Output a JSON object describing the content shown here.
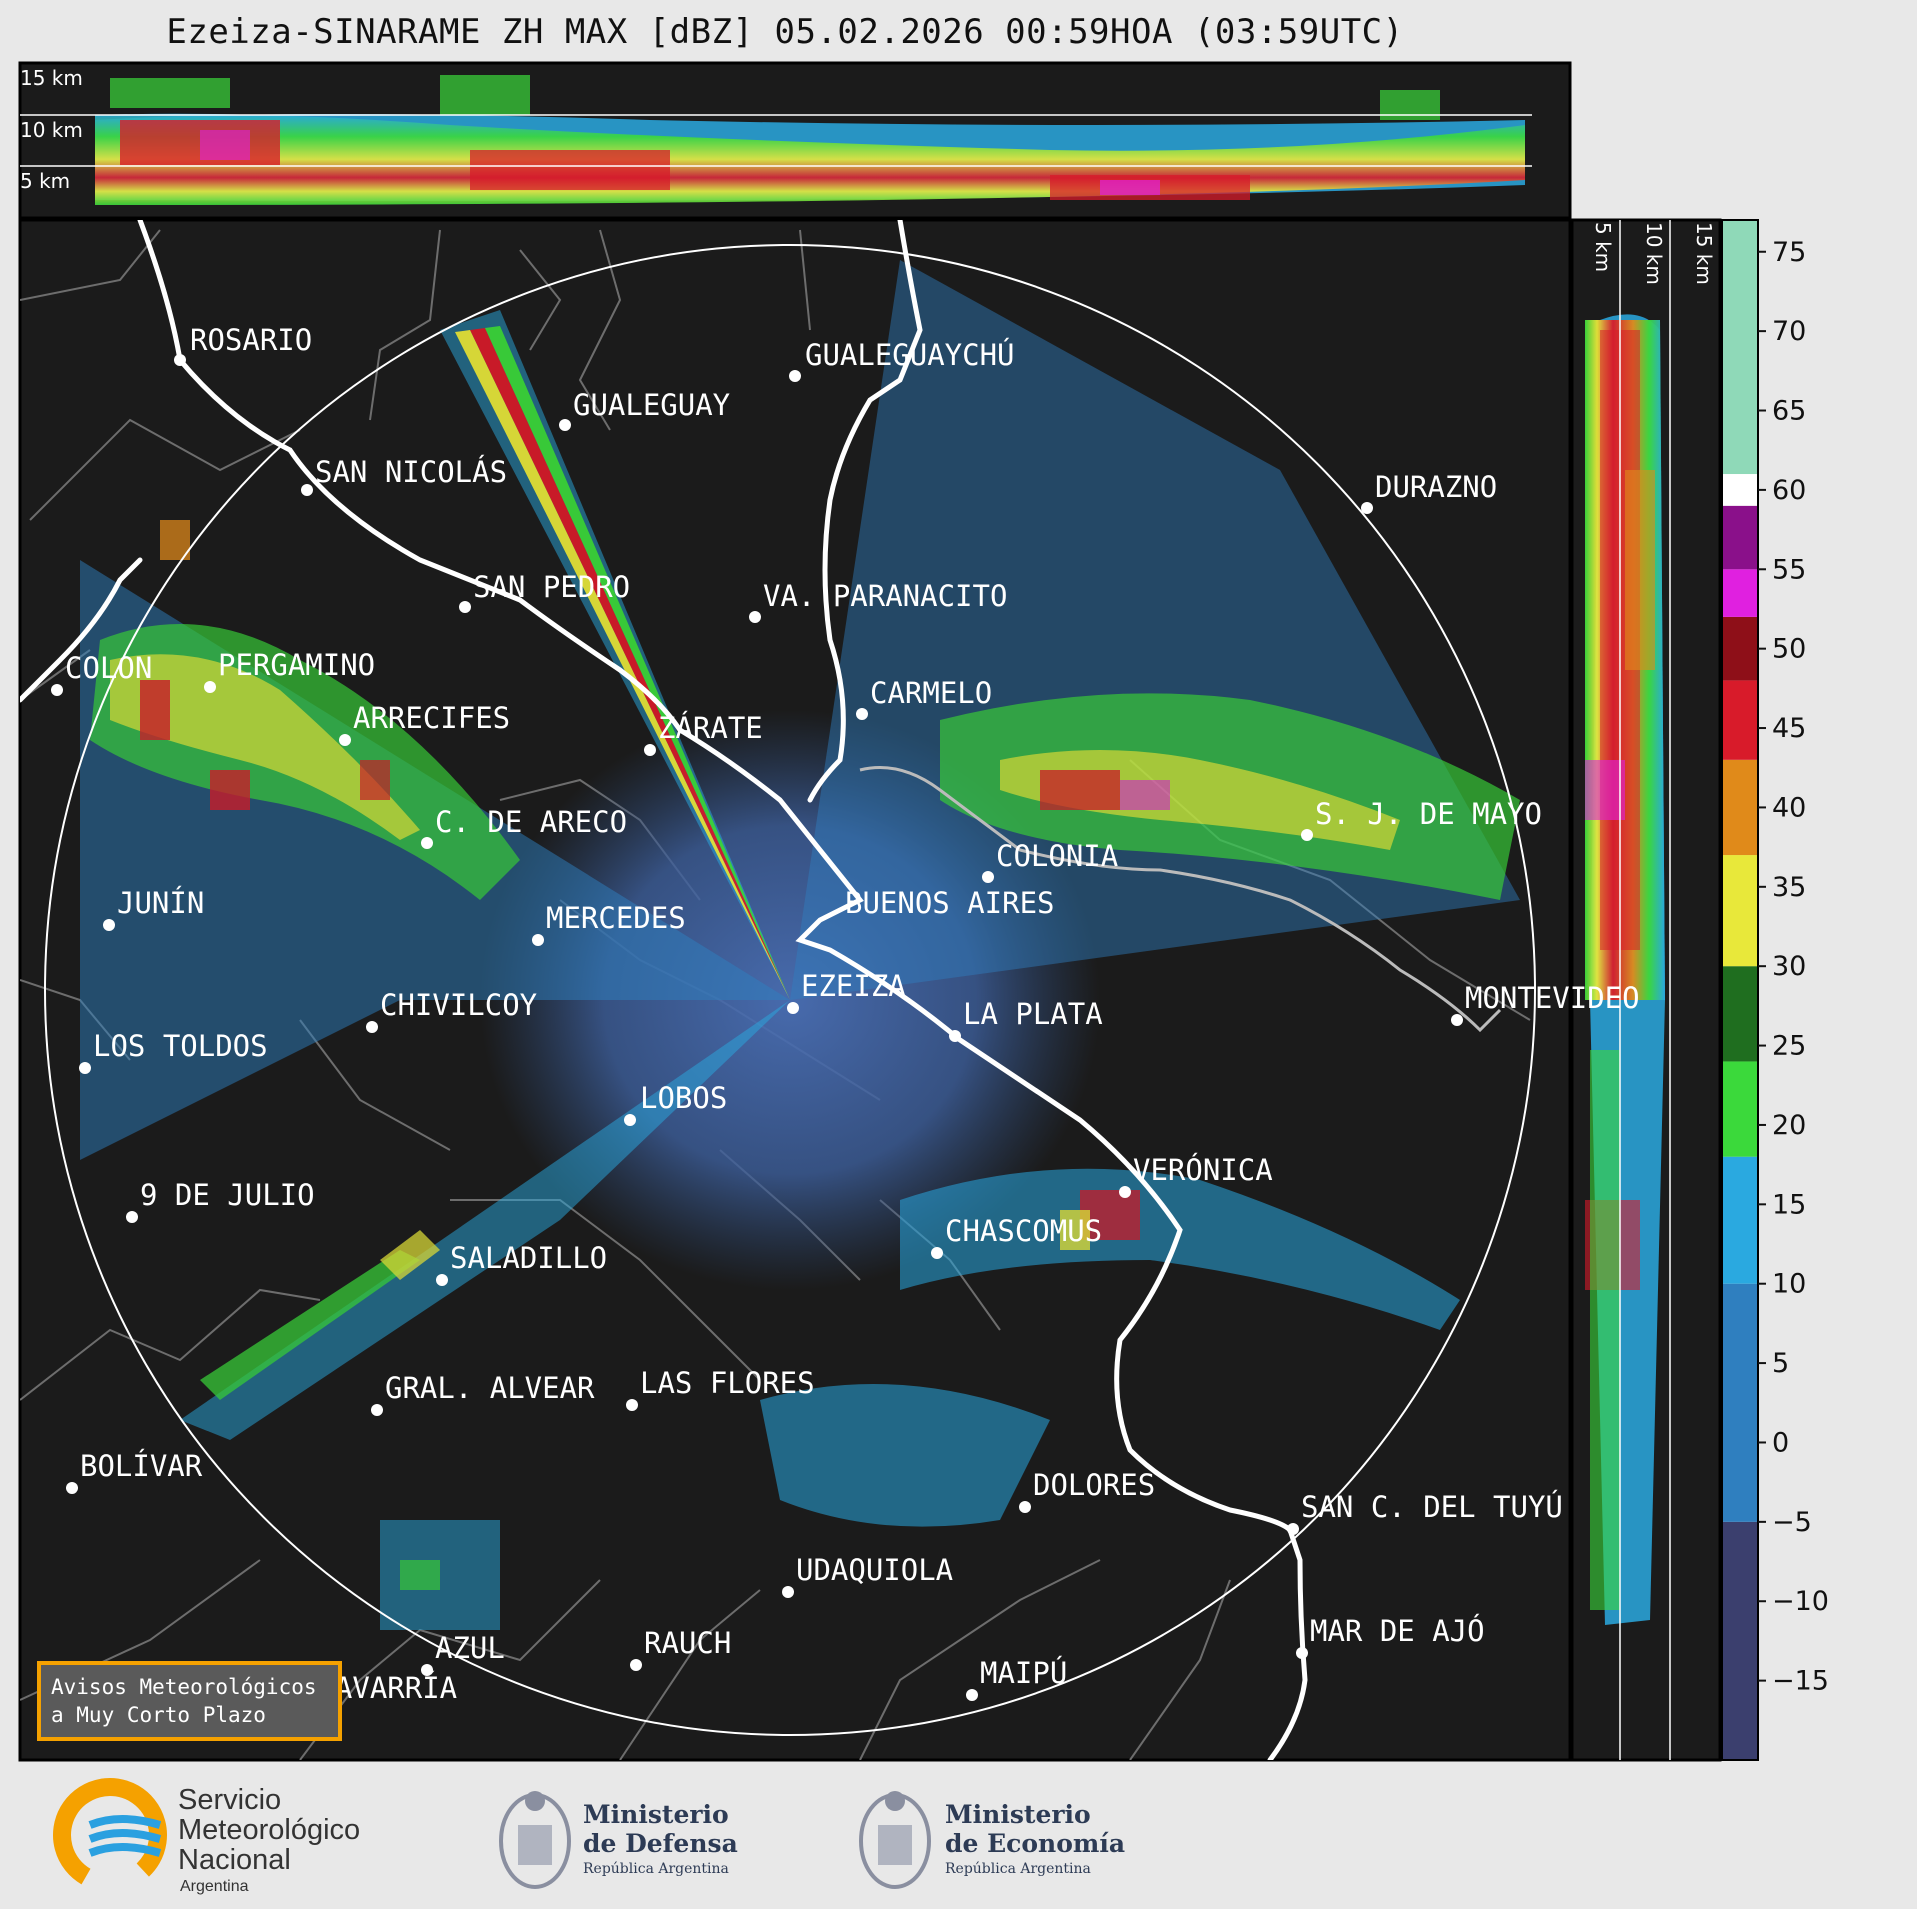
{
  "title": "Ezeiza-SINARAME ZH MAX [dBZ] 05.02.2026 00:59HOA (03:59UTC)",
  "top_panel_heights": [
    "15 km",
    "10 km",
    "5 km"
  ],
  "side_panel_heights": [
    "5 km",
    "10 km",
    "15 km"
  ],
  "cities": [
    {
      "name": "ROSARIO"
    },
    {
      "name": "GUALEGUAYCHÚ"
    },
    {
      "name": "GUALEGUAY"
    },
    {
      "name": "SAN NICOLÁS"
    },
    {
      "name": "DURAZNO"
    },
    {
      "name": "SAN PEDRO"
    },
    {
      "name": "VA. PARANACITO"
    },
    {
      "name": "COLON"
    },
    {
      "name": "PERGAMINO"
    },
    {
      "name": "CARMELO"
    },
    {
      "name": "ARRECIFES"
    },
    {
      "name": "ZÁRATE"
    },
    {
      "name": "S. J. DE MAYO"
    },
    {
      "name": "C. DE ARECO"
    },
    {
      "name": "COLONIA"
    },
    {
      "name": "JUNÍN"
    },
    {
      "name": "BUENOS AIRES"
    },
    {
      "name": "MERCEDES"
    },
    {
      "name": "EZEIZA"
    },
    {
      "name": "MONTEVIDEO"
    },
    {
      "name": "CHIVILCOY"
    },
    {
      "name": "LA PLATA"
    },
    {
      "name": "LOS TOLDOS"
    },
    {
      "name": "LOBOS"
    },
    {
      "name": "VERÓNICA"
    },
    {
      "name": "9 DE JULIO"
    },
    {
      "name": "CHASCOMUS"
    },
    {
      "name": "SALADILLO"
    },
    {
      "name": "GRAL. ALVEAR"
    },
    {
      "name": "LAS FLORES"
    },
    {
      "name": "BOLÍVAR"
    },
    {
      "name": "DOLORES"
    },
    {
      "name": "SAN C. DEL TUYÚ"
    },
    {
      "name": "UDAQUIOLA"
    },
    {
      "name": "AZUL"
    },
    {
      "name": "RAUCH"
    },
    {
      "name": "MAR DE AJÓ"
    },
    {
      "name": "OLAVARRÍA"
    },
    {
      "name": "MAIPÚ"
    }
  ],
  "colorbar": {
    "unit": "dBZ",
    "ticks": [
      "75",
      "70",
      "65",
      "60",
      "55",
      "50",
      "45",
      "40",
      "35",
      "30",
      "25",
      "20",
      "15",
      "10",
      "5",
      "0",
      "−5",
      "−10",
      "−15"
    ],
    "colors": {
      "purple_low": "#3b3f6e",
      "blue": "#2f7fbf",
      "cyan": "#2aa9e0",
      "green": "#3bd93b",
      "dark_green": "#1f6e1f",
      "yellow": "#e8e83a",
      "orange": "#e08a1a",
      "red": "#d81b2a",
      "dark_red": "#8e0f18",
      "magenta": "#e020e0",
      "purple": "#8a108a",
      "white": "#ffffff",
      "mint": "#8fd9b8"
    }
  },
  "warning_box": {
    "line1": "Avisos Meteorológicos",
    "line2": "a Muy Corto Plazo"
  },
  "logos": {
    "smn": {
      "line1": "Servicio",
      "line2": "Meteorológico",
      "line3": "Nacional",
      "line4": "Argentina"
    },
    "defensa": {
      "line1": "Ministerio",
      "line2": "de Defensa",
      "line3": "República Argentina"
    },
    "economia": {
      "line1": "Ministerio",
      "line2": "de Economía",
      "line3": "República Argentina"
    }
  }
}
